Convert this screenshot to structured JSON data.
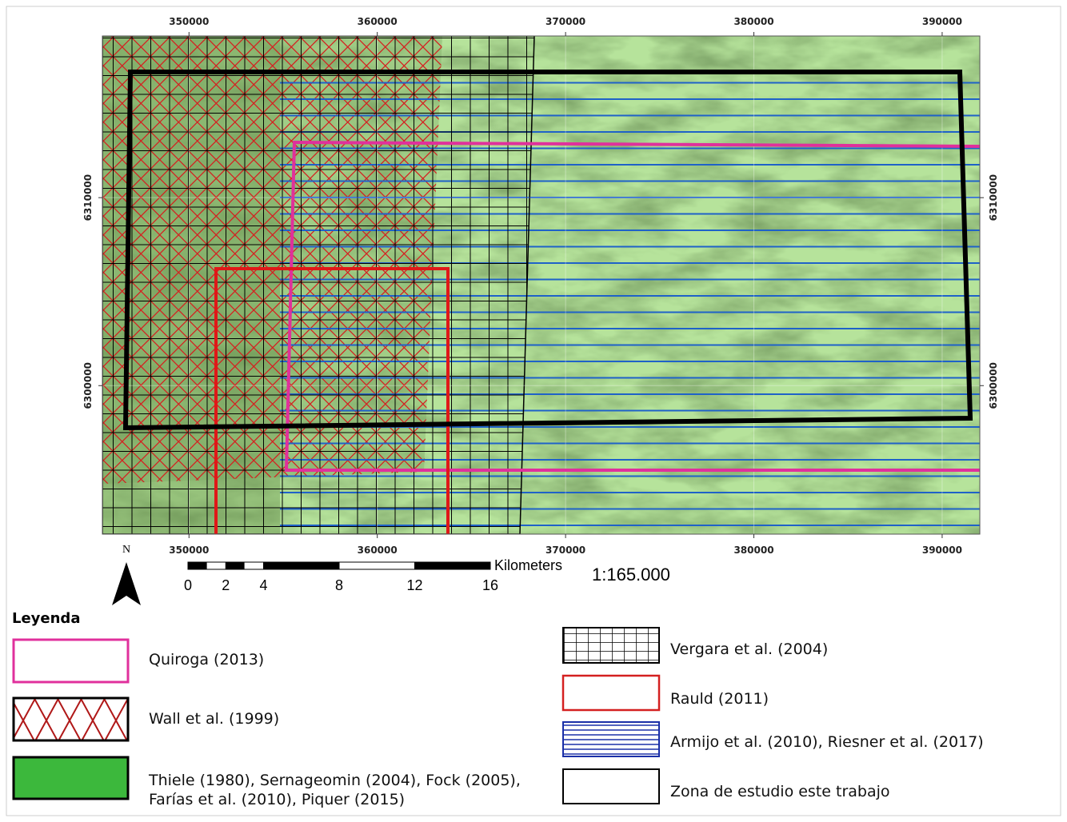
{
  "map": {
    "xlim": [
      345400,
      392000
    ],
    "ylim": [
      6292100,
      6318600
    ],
    "xticks": [
      350000,
      360000,
      370000,
      380000,
      390000
    ],
    "yticks": [
      6310000,
      6300000
    ],
    "north": "N",
    "scale": "1:165.000"
  },
  "scale_bar": {
    "unit": "Kilometers",
    "ticks": [
      0,
      2,
      4,
      8,
      12,
      16
    ]
  },
  "legend": {
    "title": "Leyenda",
    "items": [
      "Quiroga (2013)",
      "Wall et al. (1999)",
      [
        "Thiele (1980), Sernageomin (2004), Fock (2005),",
        "Farías et al. (2010), Piquer (2015)"
      ],
      "Vergara et al. (2004)",
      "Rauld (2011)",
      "Armijo et al. (2010), Riesner et al. (2017)",
      "Zona de estudio este trabajo"
    ]
  }
}
